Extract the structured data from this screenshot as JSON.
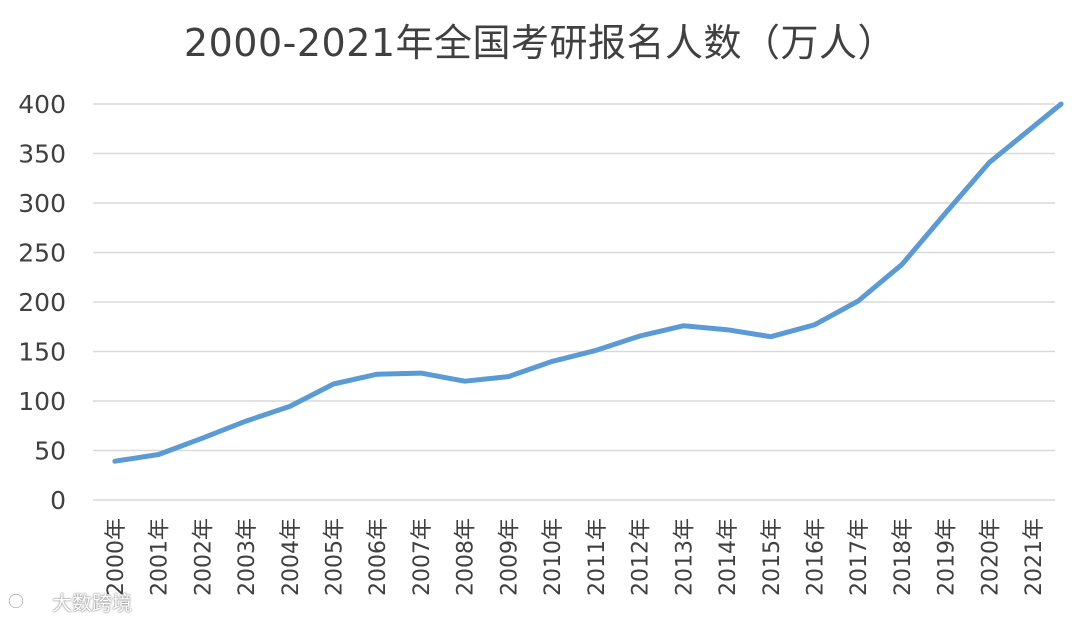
{
  "chart_data": {
    "type": "line",
    "title": "2000-2021年全国考研报名人数（万人）",
    "xlabel": "",
    "ylabel": "",
    "ylim": [
      0,
      400
    ],
    "yticks": [
      "0",
      "50",
      "100",
      "150",
      "200",
      "250",
      "300",
      "350",
      "400"
    ],
    "grid": true,
    "legend": "none",
    "categories": [
      "2000年",
      "2001年",
      "2002年",
      "2003年",
      "2004年",
      "2005年",
      "2006年",
      "2007年",
      "2008年",
      "2009年",
      "2010年",
      "2011年",
      "2012年",
      "2013年",
      "2014年",
      "2015年",
      "2016年",
      "2017年",
      "2018年",
      "2019年",
      "2020年",
      "2021年"
    ],
    "series": [
      {
        "color": "#5b9bd5",
        "values": [
          39.2,
          46,
          62.4,
          79.7,
          94.5,
          117.2,
          127.1,
          128.2,
          120,
          124.6,
          140,
          151.1,
          165.6,
          176,
          172,
          164.9,
          177,
          201,
          238,
          290,
          341,
          377
        ]
      }
    ]
  },
  "watermark": {
    "text": "大数跨境"
  }
}
